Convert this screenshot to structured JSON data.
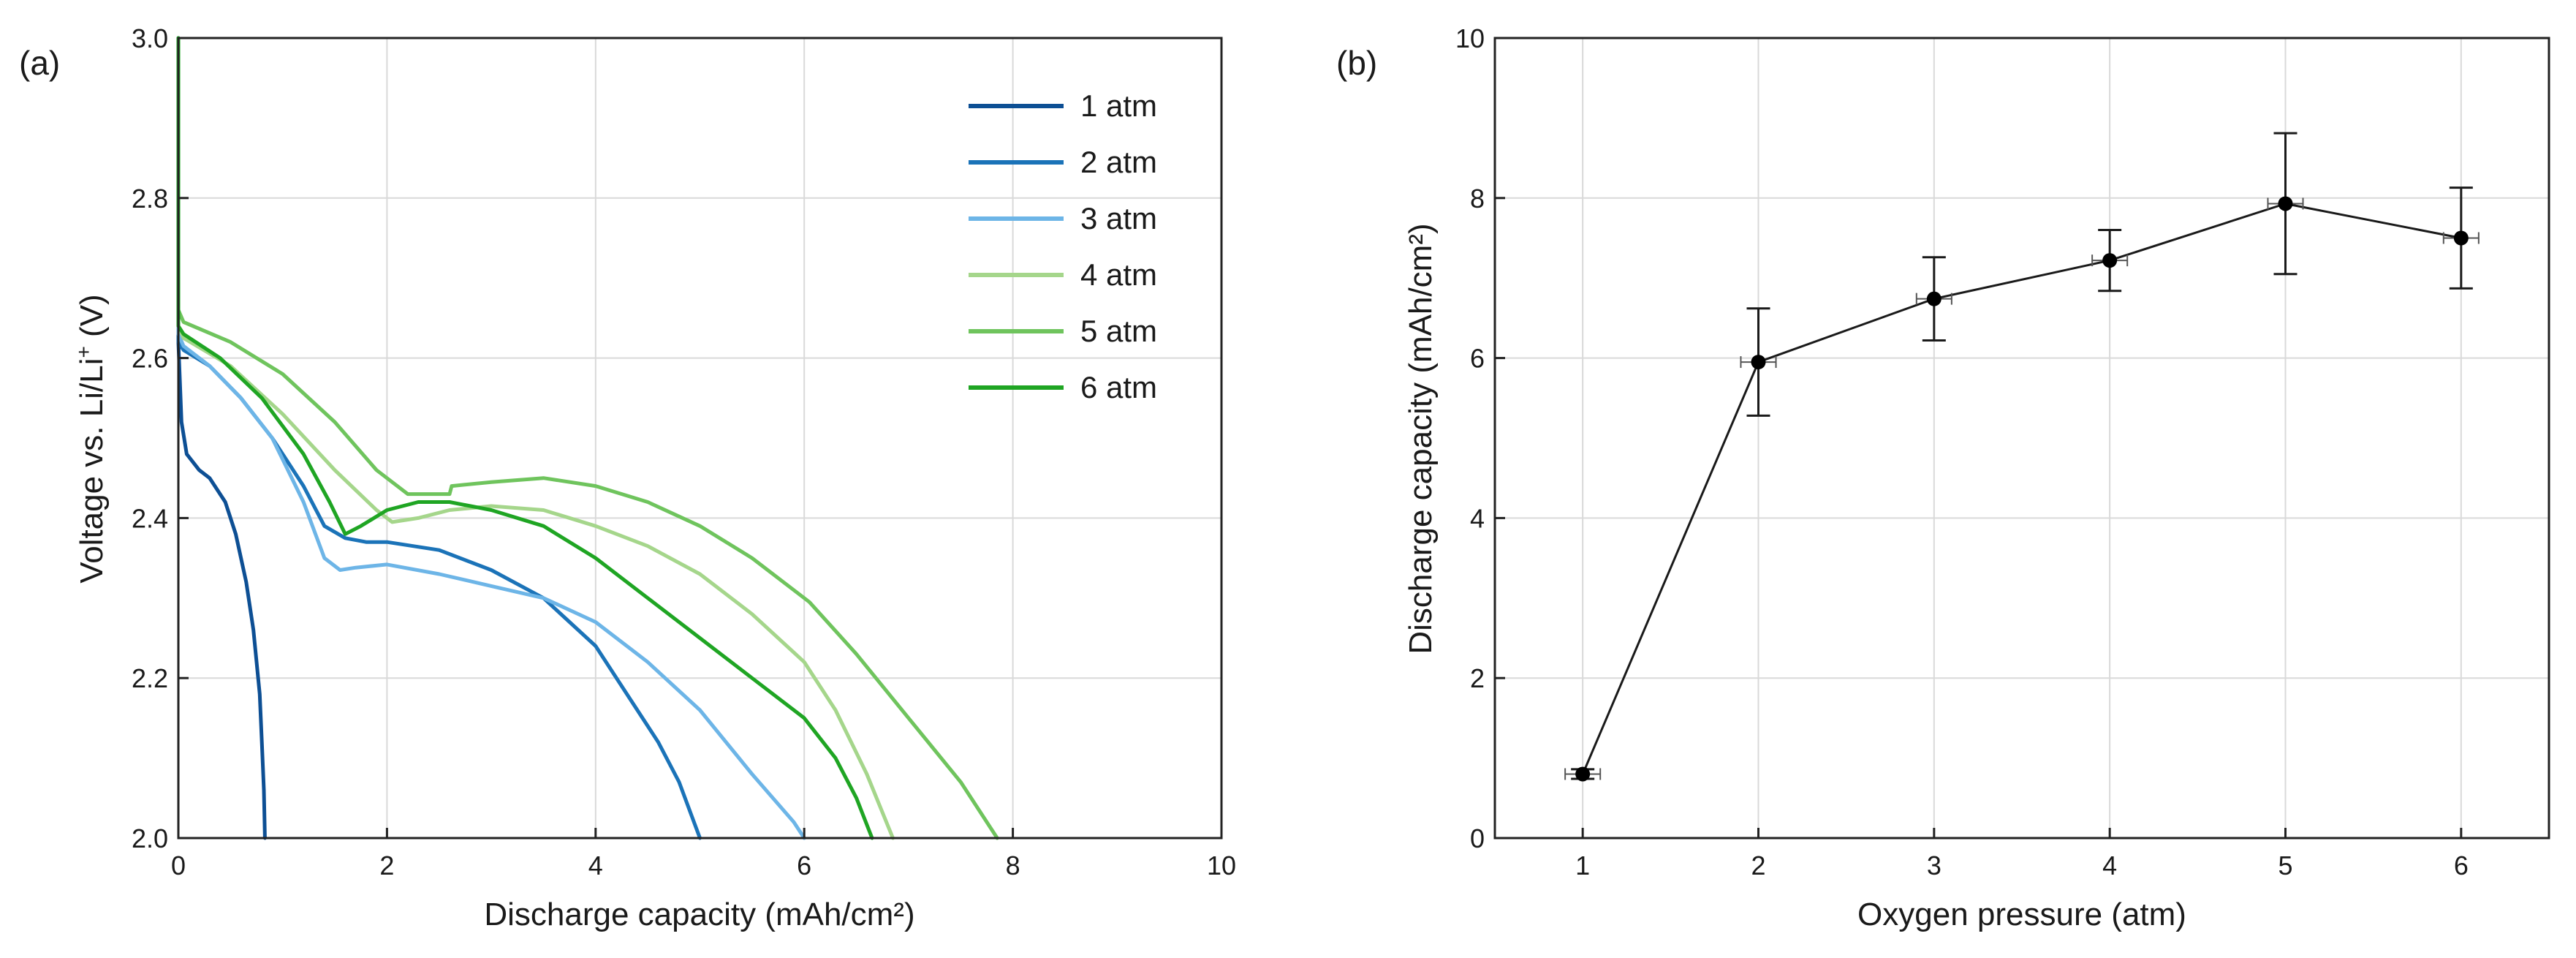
{
  "chart_data": [
    {
      "type": "line",
      "panel_label": "(a)",
      "title": "",
      "xlabel": "Discharge capacity (mAh/cm²)",
      "ylabel_main": "Voltage vs. Li/Li",
      "ylabel_sup": "+",
      "ylabel_end": " (V)",
      "xlim": [
        0,
        10
      ],
      "ylim": [
        2.0,
        3.0
      ],
      "xticks": [
        0,
        2,
        4,
        6,
        8,
        10
      ],
      "xtick_labels": [
        "0",
        "2",
        "4",
        "6",
        "8",
        "10"
      ],
      "yticks": [
        2.0,
        2.2,
        2.4,
        2.6,
        2.8,
        3.0
      ],
      "ytick_labels": [
        "2.0",
        "2.2",
        "2.4",
        "2.6",
        "2.8",
        "3.0"
      ],
      "grid": true,
      "legend_position": "top-right",
      "series": [
        {
          "name": "1 atm",
          "color": "#0d4f94",
          "points": [
            [
              0,
              2.62
            ],
            [
              0.03,
              2.52
            ],
            [
              0.08,
              2.48
            ],
            [
              0.2,
              2.46
            ],
            [
              0.3,
              2.45
            ],
            [
              0.45,
              2.42
            ],
            [
              0.55,
              2.38
            ],
            [
              0.65,
              2.32
            ],
            [
              0.72,
              2.26
            ],
            [
              0.78,
              2.18
            ],
            [
              0.8,
              2.12
            ],
            [
              0.82,
              2.06
            ],
            [
              0.83,
              2.0
            ]
          ]
        },
        {
          "name": "2 atm",
          "color": "#1b73b8",
          "points": [
            [
              0,
              2.62
            ],
            [
              0.05,
              2.61
            ],
            [
              0.3,
              2.59
            ],
            [
              0.6,
              2.55
            ],
            [
              0.9,
              2.5
            ],
            [
              1.2,
              2.44
            ],
            [
              1.4,
              2.39
            ],
            [
              1.6,
              2.375
            ],
            [
              1.8,
              2.37
            ],
            [
              2.0,
              2.37
            ],
            [
              2.5,
              2.36
            ],
            [
              3.0,
              2.335
            ],
            [
              3.5,
              2.3
            ],
            [
              4.0,
              2.24
            ],
            [
              4.3,
              2.18
            ],
            [
              4.6,
              2.12
            ],
            [
              4.8,
              2.07
            ],
            [
              5.0,
              2.0
            ]
          ]
        },
        {
          "name": "3 atm",
          "color": "#6db5e7",
          "points": [
            [
              0,
              2.63
            ],
            [
              0.05,
              2.615
            ],
            [
              0.3,
              2.59
            ],
            [
              0.6,
              2.55
            ],
            [
              0.9,
              2.5
            ],
            [
              1.2,
              2.42
            ],
            [
              1.4,
              2.35
            ],
            [
              1.55,
              2.335
            ],
            [
              1.7,
              2.338
            ],
            [
              2.0,
              2.342
            ],
            [
              2.5,
              2.33
            ],
            [
              3.0,
              2.315
            ],
            [
              3.5,
              2.3
            ],
            [
              4.0,
              2.27
            ],
            [
              4.5,
              2.22
            ],
            [
              5.0,
              2.16
            ],
            [
              5.5,
              2.08
            ],
            [
              5.9,
              2.02
            ],
            [
              6.0,
              2.0
            ]
          ]
        },
        {
          "name": "4 atm",
          "color": "#a5d68b",
          "points": [
            [
              0,
              2.64
            ],
            [
              0.05,
              2.625
            ],
            [
              0.5,
              2.59
            ],
            [
              1.0,
              2.53
            ],
            [
              1.5,
              2.46
            ],
            [
              1.9,
              2.41
            ],
            [
              2.05,
              2.395
            ],
            [
              2.3,
              2.4
            ],
            [
              2.6,
              2.41
            ],
            [
              3.0,
              2.415
            ],
            [
              3.5,
              2.41
            ],
            [
              4.0,
              2.39
            ],
            [
              4.5,
              2.365
            ],
            [
              5.0,
              2.33
            ],
            [
              5.5,
              2.28
            ],
            [
              6.0,
              2.22
            ],
            [
              6.3,
              2.16
            ],
            [
              6.6,
              2.08
            ],
            [
              6.85,
              2.0
            ]
          ]
        },
        {
          "name": "5 atm",
          "color": "#6fc45d",
          "points": [
            [
              0,
              2.66
            ],
            [
              0.05,
              2.645
            ],
            [
              0.5,
              2.62
            ],
            [
              1.0,
              2.58
            ],
            [
              1.5,
              2.52
            ],
            [
              1.9,
              2.46
            ],
            [
              2.2,
              2.43
            ],
            [
              2.4,
              2.43
            ],
            [
              2.6,
              2.43
            ],
            [
              2.62,
              2.44
            ],
            [
              3.0,
              2.445
            ],
            [
              3.5,
              2.45
            ],
            [
              4.0,
              2.44
            ],
            [
              4.5,
              2.42
            ],
            [
              5.0,
              2.39
            ],
            [
              5.5,
              2.35
            ],
            [
              6.0,
              2.3
            ],
            [
              6.05,
              2.295
            ],
            [
              6.5,
              2.23
            ],
            [
              7.0,
              2.15
            ],
            [
              7.5,
              2.07
            ],
            [
              7.85,
              2.0
            ]
          ]
        },
        {
          "name": "6 atm",
          "color": "#1fa523",
          "points": [
            [
              0,
              2.64
            ],
            [
              0.05,
              2.63
            ],
            [
              0.4,
              2.6
            ],
            [
              0.8,
              2.55
            ],
            [
              1.2,
              2.48
            ],
            [
              1.45,
              2.42
            ],
            [
              1.6,
              2.38
            ],
            [
              1.75,
              2.39
            ],
            [
              2.0,
              2.41
            ],
            [
              2.3,
              2.42
            ],
            [
              2.6,
              2.42
            ],
            [
              3.0,
              2.41
            ],
            [
              3.5,
              2.39
            ],
            [
              4.0,
              2.35
            ],
            [
              4.5,
              2.3
            ],
            [
              5.0,
              2.25
            ],
            [
              5.5,
              2.2
            ],
            [
              6.0,
              2.15
            ],
            [
              6.3,
              2.1
            ],
            [
              6.5,
              2.05
            ],
            [
              6.65,
              2.0
            ]
          ]
        }
      ]
    },
    {
      "type": "scatter",
      "panel_label": "(b)",
      "title": "",
      "xlabel": "Oxygen pressure (atm)",
      "ylabel": "Discharge capacity (mAh/cm²)",
      "xlim": [
        0.5,
        6.5
      ],
      "ylim": [
        0,
        10
      ],
      "xticks": [
        1,
        2,
        3,
        4,
        5,
        6
      ],
      "xtick_labels": [
        "1",
        "2",
        "3",
        "4",
        "5",
        "6"
      ],
      "yticks": [
        0,
        2,
        4,
        6,
        8,
        10
      ],
      "ytick_labels": [
        "0",
        "2",
        "4",
        "6",
        "8",
        "10"
      ],
      "grid": true,
      "series": [
        {
          "name": "Discharge capacity",
          "color": "#000000",
          "x": [
            1,
            2,
            3,
            4,
            5,
            6
          ],
          "y": [
            0.8,
            5.95,
            6.74,
            7.22,
            7.93,
            7.5
          ],
          "yerr": [
            0.06,
            0.67,
            0.52,
            0.38,
            0.88,
            0.63
          ],
          "xerr": [
            0.1,
            0.1,
            0.1,
            0.1,
            0.1,
            0.1
          ]
        }
      ]
    }
  ]
}
